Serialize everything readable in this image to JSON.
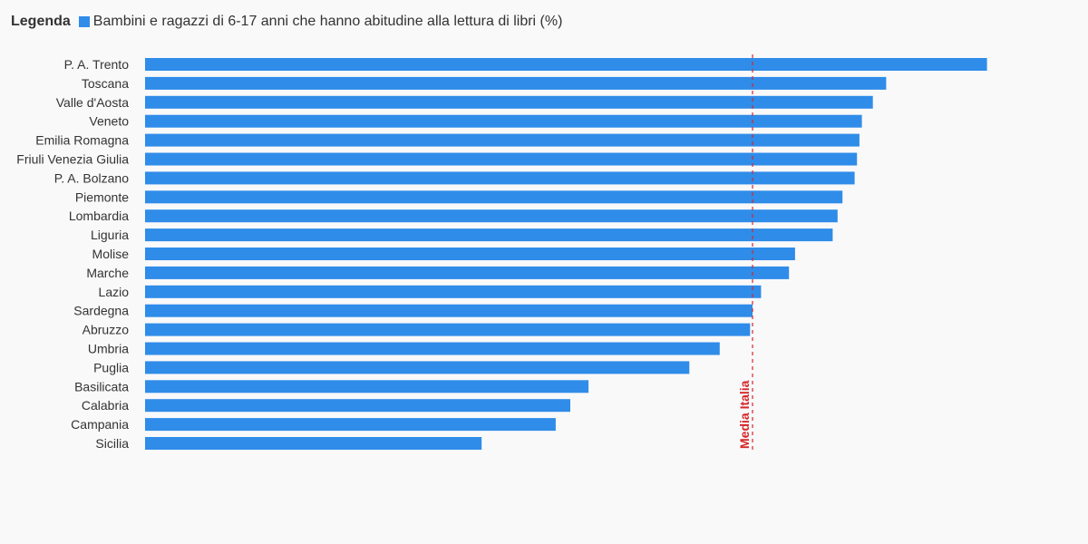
{
  "legend": {
    "title": "Legenda",
    "series_label": "Bambini e ragazzi di 6-17 anni che hanno abitudine alla lettura di libri (%)"
  },
  "colors": {
    "bar": "#2f8ce9",
    "reference_line": "#d62728",
    "text": "#333333",
    "background": "#f9f9fa"
  },
  "chart_data": {
    "type": "bar",
    "orientation": "horizontal",
    "categories": [
      "P. A. Trento",
      "Toscana",
      "Valle d'Aosta",
      "Veneto",
      "Emilia Romagna",
      "Friuli Venezia Giulia",
      "P. A. Bolzano",
      "Piemonte",
      "Lombardia",
      "Liguria",
      "Molise",
      "Marche",
      "Lazio",
      "Sardegna",
      "Abruzzo",
      "Umbria",
      "Puglia",
      "Basilicata",
      "Calabria",
      "Campania",
      "Sicilia"
    ],
    "series": [
      {
        "name": "Bambini e ragazzi di 6-17 anni che hanno abitudine alla lettura di libri (%)",
        "values": [
          69.3,
          61.0,
          59.9,
          59.0,
          58.8,
          58.6,
          58.4,
          57.4,
          57.0,
          56.6,
          53.5,
          53.0,
          50.7,
          50.0,
          49.8,
          47.3,
          44.8,
          36.5,
          35.0,
          33.8,
          27.7
        ]
      }
    ],
    "xlim": [
      0,
      70
    ],
    "title": "",
    "xlabel": "",
    "ylabel": "",
    "grid": false,
    "legend_position": "top-left",
    "reference_lines": [
      {
        "label": "Media Italia",
        "value": 50.0,
        "style": "dashed"
      }
    ]
  }
}
